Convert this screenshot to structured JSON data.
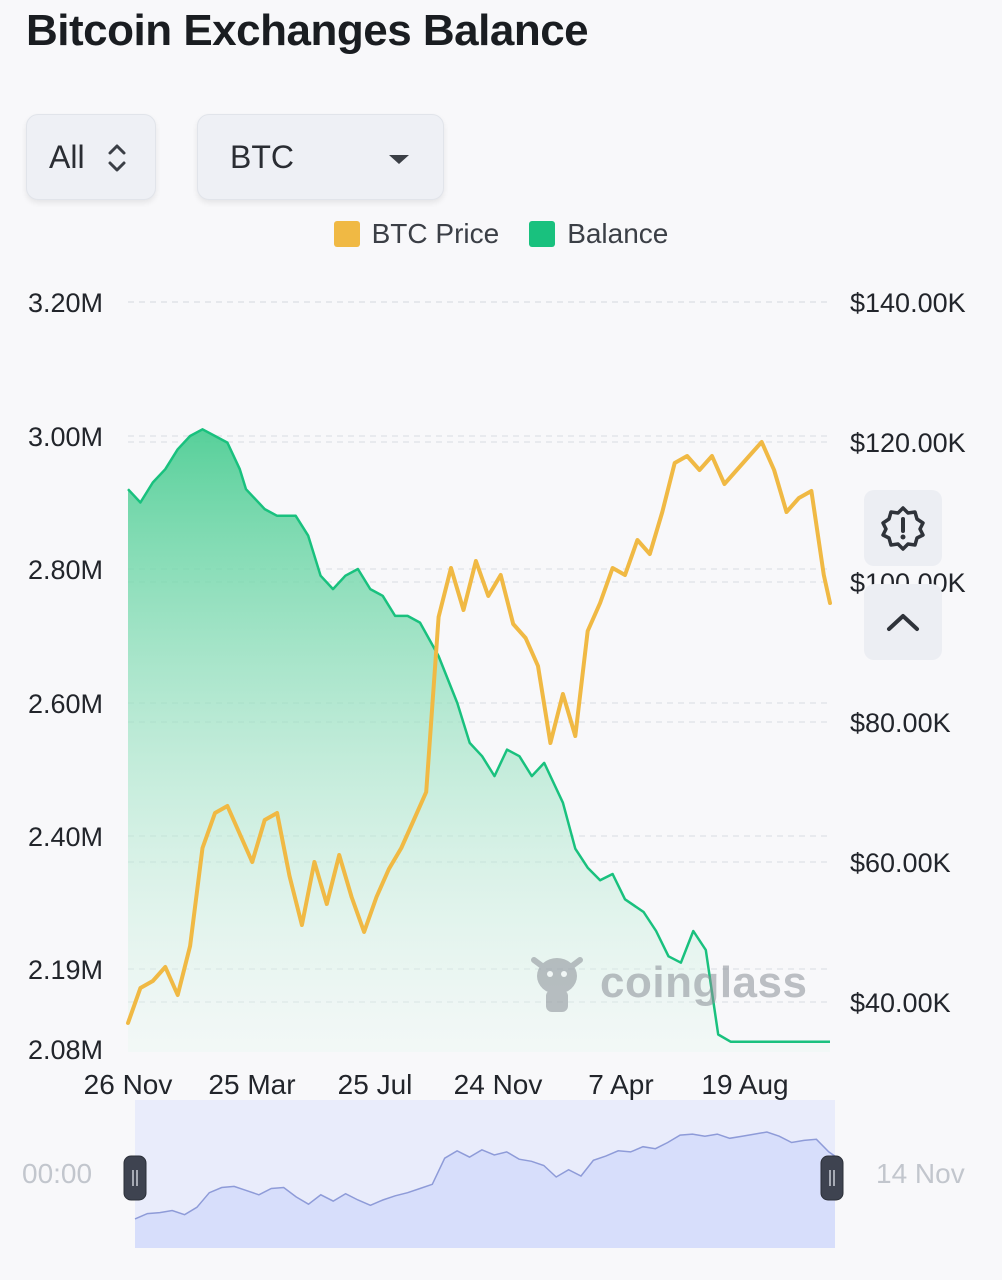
{
  "title": "Bitcoin Exchanges Balance",
  "controls": {
    "range_select": {
      "value": "All"
    },
    "coin_select": {
      "value": "BTC"
    }
  },
  "icons": {
    "range_updown": "updown-chevron-icon",
    "coin_caret": "caret-down-icon",
    "alert": "alert-badge-icon",
    "collapse": "chevron-up-icon",
    "watermark_logo": "coinglass-bull-icon"
  },
  "watermark": "coinglass",
  "datazoom": {
    "start_label": "00:00",
    "end_label": "14 Nov"
  },
  "colors": {
    "price": "#f0b944",
    "balance": "#19c17e",
    "balance_fill_top": "#5fd3a0",
    "zoom_fill": "#d7defb"
  },
  "chart_data": {
    "type": "line",
    "legend": [
      "BTC Price",
      "Balance"
    ],
    "legend_position": "top-center",
    "grid": true,
    "x_ticks": [
      "26 Nov",
      "25 Mar",
      "25 Jul",
      "24 Nov",
      "7 Apr",
      "19 Aug"
    ],
    "left_axis": {
      "ticks": [
        "3.20M",
        "3.00M",
        "2.80M",
        "2.60M",
        "2.40M",
        "2.19M",
        "2.08M"
      ],
      "min": 2.08,
      "max": 3.2,
      "unit": "M"
    },
    "right_axis": {
      "ticks": [
        "$140.00K",
        "$120.00K",
        "$100.00K",
        "$80.00K",
        "$60.00K",
        "$40.00K"
      ],
      "min": 34,
      "max": 140,
      "unit": "K"
    },
    "series": [
      {
        "name": "Balance",
        "axis": "left",
        "style": "area",
        "x": [
          0,
          2,
          4,
          6,
          8,
          10,
          12,
          14,
          16,
          18,
          19,
          22,
          24,
          27,
          29,
          31,
          33,
          35,
          37,
          39,
          41,
          43,
          45,
          47,
          50,
          53,
          55,
          57,
          59,
          61,
          63,
          65,
          67,
          70,
          72,
          74,
          76,
          78,
          80,
          83,
          85,
          87,
          89,
          91,
          93,
          95,
          97,
          99,
          101,
          103,
          105,
          107,
          109,
          111,
          113
        ],
        "values": [
          2.92,
          2.9,
          2.93,
          2.95,
          2.98,
          3.0,
          3.01,
          3.0,
          2.99,
          2.95,
          2.92,
          2.89,
          2.88,
          2.88,
          2.85,
          2.79,
          2.77,
          2.79,
          2.8,
          2.77,
          2.76,
          2.73,
          2.73,
          2.72,
          2.67,
          2.6,
          2.54,
          2.52,
          2.49,
          2.53,
          2.52,
          2.49,
          2.51,
          2.45,
          2.38,
          2.35,
          2.33,
          2.34,
          2.3,
          2.28,
          2.25,
          2.21,
          2.2,
          2.25,
          2.22,
          2.1,
          2.09,
          2.09,
          2.09,
          2.09,
          2.09,
          2.09,
          2.09,
          2.09,
          2.09
        ],
        "x_end": 113
      },
      {
        "name": "BTC Price",
        "axis": "right",
        "style": "line",
        "x": [
          0,
          2,
          4,
          6,
          8,
          10,
          12,
          14,
          16,
          18,
          20,
          22,
          24,
          26,
          28,
          30,
          32,
          34,
          36,
          38,
          40,
          42,
          44,
          46,
          48,
          50,
          52,
          54,
          56,
          58,
          60,
          62,
          64,
          66,
          68,
          70,
          72,
          74,
          76,
          78,
          80,
          82,
          84,
          86,
          88,
          90,
          92,
          94,
          96,
          98,
          100,
          102,
          104,
          106,
          108,
          110,
          112,
          113
        ],
        "values": [
          37,
          42,
          43,
          45,
          41,
          48,
          62,
          67,
          68,
          64,
          60,
          66,
          67,
          58,
          51,
          60,
          54,
          61,
          55,
          50,
          55,
          59,
          62,
          66,
          70,
          95,
          102,
          96,
          103,
          98,
          101,
          94,
          92,
          88,
          77,
          84,
          78,
          93,
          97,
          102,
          101,
          106,
          104,
          110,
          117,
          118,
          116,
          118,
          114,
          116,
          118,
          120,
          116,
          110,
          112,
          113,
          101,
          97
        ]
      }
    ]
  }
}
